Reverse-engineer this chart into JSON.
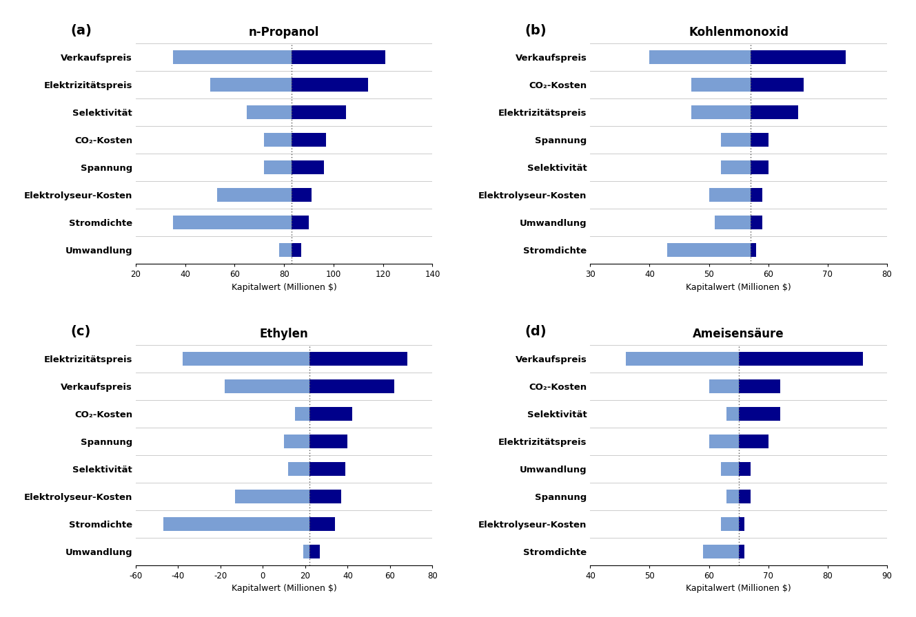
{
  "subplots": [
    {
      "label": "(a)",
      "title": "n-Propanol",
      "xlabel": "Kapitalwert (Millionen $)",
      "xlim": [
        20,
        140
      ],
      "xticks": [
        20,
        40,
        60,
        80,
        100,
        120,
        140
      ],
      "baseline": 83,
      "categories": [
        "Verkaufspreis",
        "Elektrizitätspreis",
        "Selektivität",
        "CO₂-Kosten",
        "Spannung",
        "Elektrolyseur-Kosten",
        "Stromdichte",
        "Umwandlung"
      ],
      "low": [
        35,
        50,
        65,
        72,
        72,
        53,
        35,
        78
      ],
      "high": [
        121,
        114,
        105,
        97,
        96,
        91,
        90,
        87
      ]
    },
    {
      "label": "(b)",
      "title": "Kohlenmonoxid",
      "xlabel": "Kapitalwert (Millionen $)",
      "xlim": [
        30,
        80
      ],
      "xticks": [
        30,
        40,
        50,
        60,
        70,
        80
      ],
      "baseline": 57,
      "categories": [
        "Verkaufspreis",
        "CO₂-Kosten",
        "Elektrizitätspreis",
        "Spannung",
        "Selektivität",
        "Elektrolyseur-Kosten",
        "Umwandlung",
        "Stromdichte"
      ],
      "low": [
        40,
        47,
        47,
        52,
        52,
        50,
        51,
        43
      ],
      "high": [
        73,
        66,
        65,
        60,
        60,
        59,
        59,
        58
      ]
    },
    {
      "label": "(c)",
      "title": "Ethylen",
      "xlabel": "Kapitalwert (Millionen $)",
      "xlim": [
        -60,
        80
      ],
      "xticks": [
        -60,
        -40,
        -20,
        0,
        20,
        40,
        60,
        80
      ],
      "baseline": 22,
      "categories": [
        "Elektrizitätspreis",
        "Verkaufspreis",
        "CO₂-Kosten",
        "Spannung",
        "Selektivität",
        "Elektrolyseur-Kosten",
        "Stromdichte",
        "Umwandlung"
      ],
      "low": [
        -38,
        -18,
        15,
        10,
        12,
        -13,
        -47,
        19
      ],
      "high": [
        68,
        62,
        42,
        40,
        39,
        37,
        34,
        27
      ]
    },
    {
      "label": "(d)",
      "title": "Ameisensäure",
      "xlabel": "Kapitalwert (Millionen $)",
      "xlim": [
        40,
        90
      ],
      "xticks": [
        40,
        50,
        60,
        70,
        80,
        90
      ],
      "baseline": 65,
      "categories": [
        "Verkaufspreis",
        "CO₂-Kosten",
        "Selektivität",
        "Elektrizitätspreis",
        "Umwandlung",
        "Spannung",
        "Elektrolyseur-Kosten",
        "Stromdichte"
      ],
      "low": [
        46,
        60,
        63,
        60,
        62,
        63,
        62,
        59
      ],
      "high": [
        86,
        72,
        72,
        70,
        67,
        67,
        66,
        66
      ]
    }
  ],
  "color_low": "#7b9fd4",
  "color_high": "#00008b",
  "color_baseline": "#555555",
  "label_fontsize": 9.5,
  "title_fontsize": 12,
  "axis_label_fontsize": 9,
  "tick_fontsize": 8.5,
  "panel_label_fontsize": 14
}
